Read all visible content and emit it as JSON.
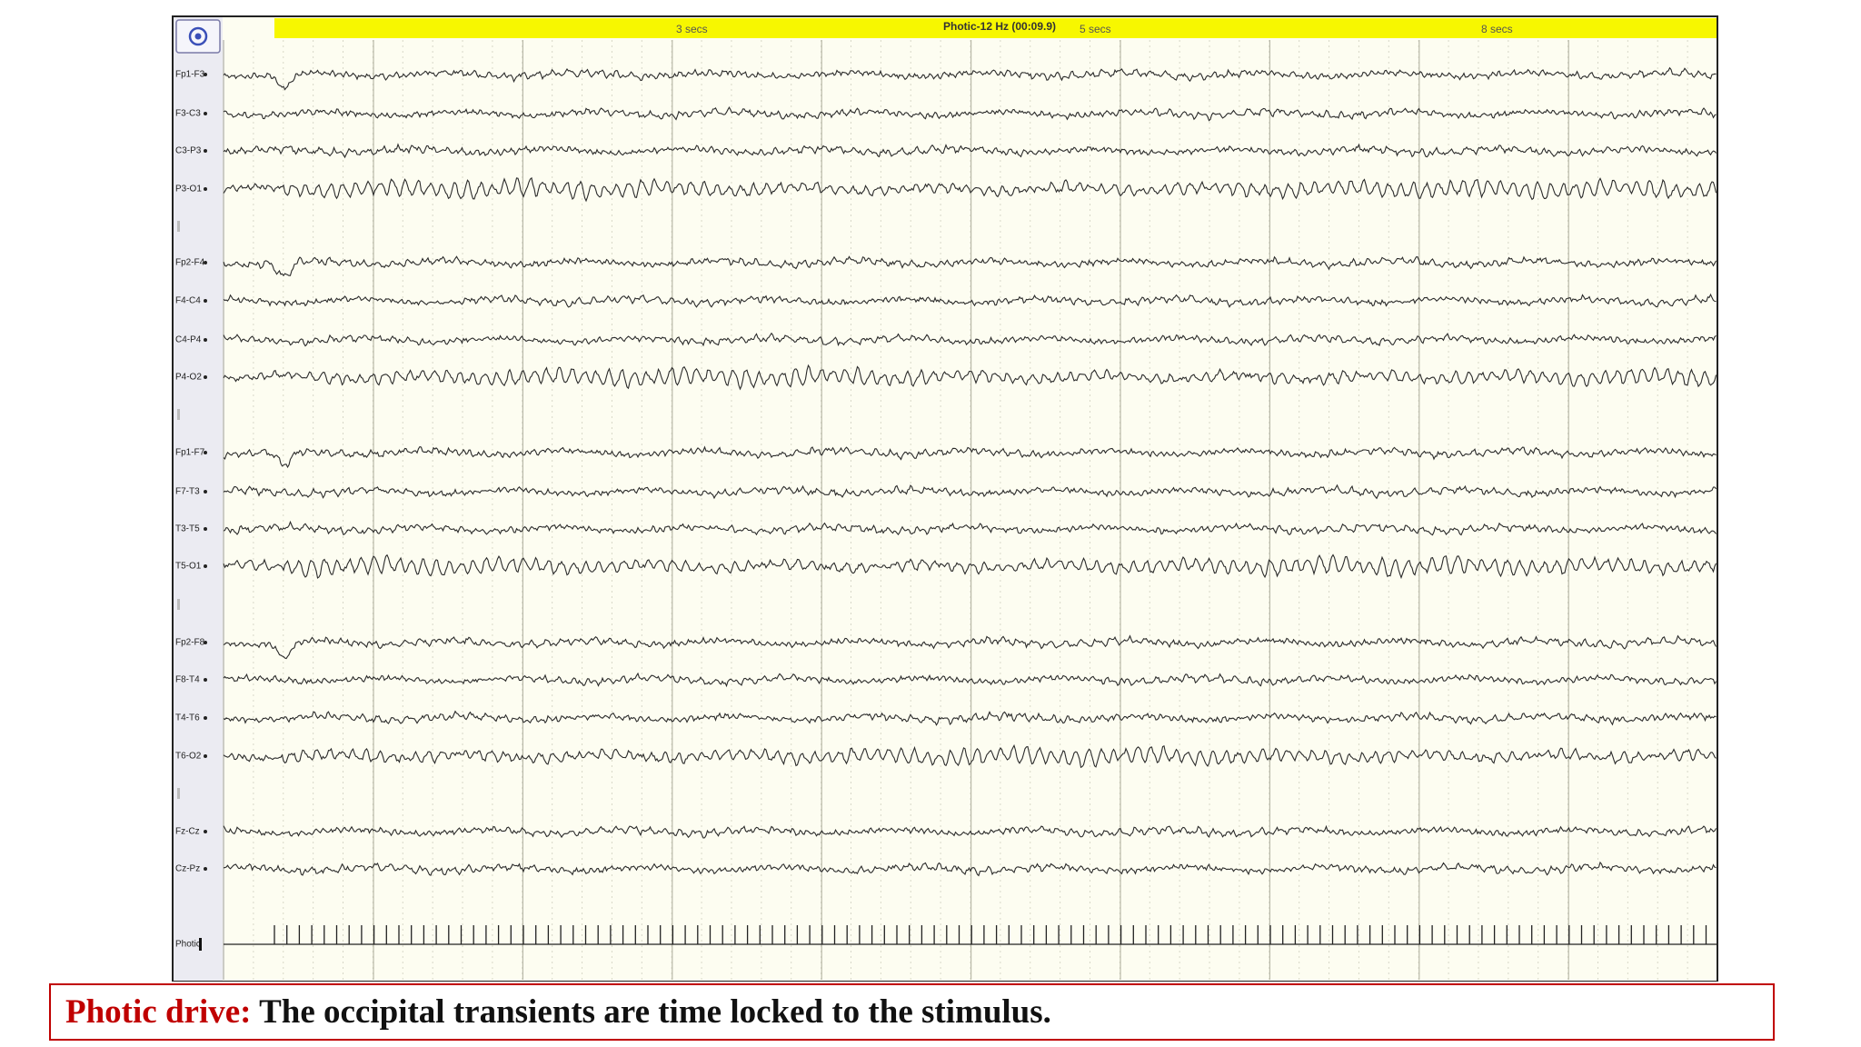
{
  "toolbar": {
    "time_marks": [
      "3 secs",
      "5 secs",
      "8 secs"
    ],
    "event": "Photic-12 Hz (00:09.9)"
  },
  "channels": [
    "Fp1-F3",
    "F3-C3",
    "C3-P3",
    "P3-O1",
    "Fp2-F4",
    "F4-C4",
    "C4-P4",
    "P4-O2",
    "Fp1-F7",
    "F7-T3",
    "T3-T5",
    "T5-O1",
    "Fp2-F8",
    "F8-T4",
    "T4-T6",
    "T6-O2",
    "Fz-Cz",
    "Cz-Pz",
    "Photic"
  ],
  "caption": {
    "label": "Photic drive:",
    "text": "The occipital transients are time locked to the stimulus."
  }
}
